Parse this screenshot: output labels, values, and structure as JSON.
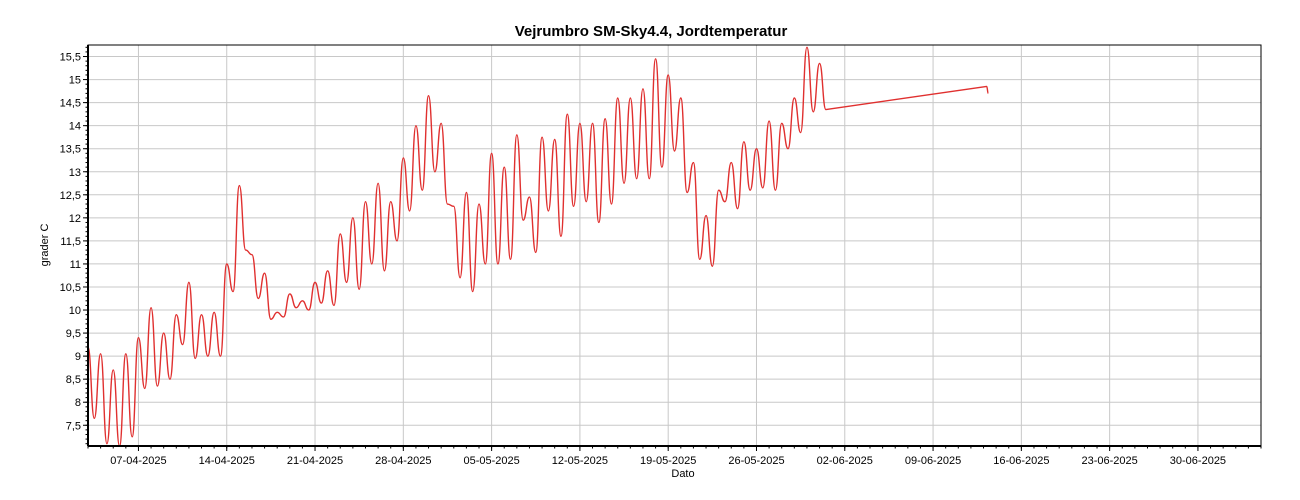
{
  "chart_data": {
    "type": "line",
    "title": "Vejrumbro SM-Sky4.4, Jordtemperatur",
    "xlabel": "Dato",
    "ylabel": "grader C",
    "x_range": [
      "2025-04-03",
      "2025-07-05"
    ],
    "ylim": [
      7.05,
      15.75
    ],
    "grid": true,
    "legend": "none",
    "x_ticks": [
      {
        "date": "2025-04-07",
        "label": "07-04-2025"
      },
      {
        "date": "2025-04-14",
        "label": "14-04-2025"
      },
      {
        "date": "2025-04-21",
        "label": "21-04-2025"
      },
      {
        "date": "2025-04-28",
        "label": "28-04-2025"
      },
      {
        "date": "2025-05-05",
        "label": "05-05-2025"
      },
      {
        "date": "2025-05-12",
        "label": "12-05-2025"
      },
      {
        "date": "2025-05-19",
        "label": "19-05-2025"
      },
      {
        "date": "2025-05-26",
        "label": "26-05-2025"
      },
      {
        "date": "2025-06-02",
        "label": "02-06-2025"
      },
      {
        "date": "2025-06-09",
        "label": "09-06-2025"
      },
      {
        "date": "2025-06-16",
        "label": "16-06-2025"
      },
      {
        "date": "2025-06-23",
        "label": "23-06-2025"
      },
      {
        "date": "2025-06-30",
        "label": "30-06-2025"
      }
    ],
    "y_ticks": [
      {
        "value": 7.5,
        "label": "7,5"
      },
      {
        "value": 8,
        "label": "8"
      },
      {
        "value": 8.5,
        "label": "8,5"
      },
      {
        "value": 9,
        "label": "9"
      },
      {
        "value": 9.5,
        "label": "9,5"
      },
      {
        "value": 10,
        "label": "10"
      },
      {
        "value": 10.5,
        "label": "10,5"
      },
      {
        "value": 11,
        "label": "11"
      },
      {
        "value": 11.5,
        "label": "11,5"
      },
      {
        "value": 12,
        "label": "12"
      },
      {
        "value": 12.5,
        "label": "12,5"
      },
      {
        "value": 13,
        "label": "13"
      },
      {
        "value": 13.5,
        "label": "13,5"
      },
      {
        "value": 14,
        "label": "14"
      },
      {
        "value": 14.5,
        "label": "14,5"
      },
      {
        "value": 15,
        "label": "15"
      },
      {
        "value": 15.5,
        "label": "15,5"
      }
    ],
    "series": [
      {
        "color": "#e0302f",
        "points": [
          [
            "2025-04-03T00:00",
            9.2
          ],
          [
            "2025-04-03T12:00",
            7.65
          ],
          [
            "2025-04-04T00:00",
            9.05
          ],
          [
            "2025-04-04T12:00",
            7.1
          ],
          [
            "2025-04-05T00:00",
            8.7
          ],
          [
            "2025-04-05T12:00",
            7.05
          ],
          [
            "2025-04-06T00:00",
            9.05
          ],
          [
            "2025-04-06T12:00",
            7.25
          ],
          [
            "2025-04-07T00:00",
            9.4
          ],
          [
            "2025-04-07T12:00",
            8.3
          ],
          [
            "2025-04-08T00:00",
            10.05
          ],
          [
            "2025-04-08T12:00",
            8.35
          ],
          [
            "2025-04-09T00:00",
            9.5
          ],
          [
            "2025-04-09T12:00",
            8.5
          ],
          [
            "2025-04-10T00:00",
            9.9
          ],
          [
            "2025-04-10T12:00",
            9.25
          ],
          [
            "2025-04-11T00:00",
            10.6
          ],
          [
            "2025-04-11T12:00",
            8.95
          ],
          [
            "2025-04-12T00:00",
            9.9
          ],
          [
            "2025-04-12T12:00",
            9.0
          ],
          [
            "2025-04-13T00:00",
            9.95
          ],
          [
            "2025-04-13T12:00",
            9.0
          ],
          [
            "2025-04-14T00:00",
            11.0
          ],
          [
            "2025-04-14T12:00",
            10.4
          ],
          [
            "2025-04-15T00:00",
            12.7
          ],
          [
            "2025-04-15T12:00",
            11.3
          ],
          [
            "2025-04-16T00:00",
            11.2
          ],
          [
            "2025-04-16T12:00",
            10.25
          ],
          [
            "2025-04-17T00:00",
            10.8
          ],
          [
            "2025-04-17T12:00",
            9.8
          ],
          [
            "2025-04-18T00:00",
            9.95
          ],
          [
            "2025-04-18T12:00",
            9.85
          ],
          [
            "2025-04-19T00:00",
            10.35
          ],
          [
            "2025-04-19T12:00",
            10.05
          ],
          [
            "2025-04-20T00:00",
            10.2
          ],
          [
            "2025-04-20T12:00",
            10.0
          ],
          [
            "2025-04-21T00:00",
            10.6
          ],
          [
            "2025-04-21T12:00",
            10.15
          ],
          [
            "2025-04-22T00:00",
            10.85
          ],
          [
            "2025-04-22T12:00",
            10.1
          ],
          [
            "2025-04-23T00:00",
            11.65
          ],
          [
            "2025-04-23T12:00",
            10.6
          ],
          [
            "2025-04-24T00:00",
            12.0
          ],
          [
            "2025-04-24T12:00",
            10.45
          ],
          [
            "2025-04-25T00:00",
            12.35
          ],
          [
            "2025-04-25T12:00",
            11.0
          ],
          [
            "2025-04-26T00:00",
            12.75
          ],
          [
            "2025-04-26T12:00",
            10.85
          ],
          [
            "2025-04-27T00:00",
            12.35
          ],
          [
            "2025-04-27T12:00",
            11.5
          ],
          [
            "2025-04-28T00:00",
            13.3
          ],
          [
            "2025-04-28T12:00",
            12.15
          ],
          [
            "2025-04-29T00:00",
            14.0
          ],
          [
            "2025-04-29T12:00",
            12.6
          ],
          [
            "2025-04-30T00:00",
            14.65
          ],
          [
            "2025-04-30T12:00",
            13.0
          ],
          [
            "2025-05-01T00:00",
            14.05
          ],
          [
            "2025-05-01T12:00",
            12.3
          ],
          [
            "2025-05-02T00:00",
            12.25
          ],
          [
            "2025-05-02T12:00",
            10.7
          ],
          [
            "2025-05-03T00:00",
            12.55
          ],
          [
            "2025-05-03T12:00",
            10.4
          ],
          [
            "2025-05-04T00:00",
            12.3
          ],
          [
            "2025-05-04T12:00",
            11.0
          ],
          [
            "2025-05-05T00:00",
            13.4
          ],
          [
            "2025-05-05T12:00",
            11.0
          ],
          [
            "2025-05-06T00:00",
            13.1
          ],
          [
            "2025-05-06T12:00",
            11.1
          ],
          [
            "2025-05-07T00:00",
            13.8
          ],
          [
            "2025-05-07T12:00",
            11.95
          ],
          [
            "2025-05-08T00:00",
            12.45
          ],
          [
            "2025-05-08T12:00",
            11.25
          ],
          [
            "2025-05-09T00:00",
            13.75
          ],
          [
            "2025-05-09T12:00",
            12.15
          ],
          [
            "2025-05-10T00:00",
            13.7
          ],
          [
            "2025-05-10T12:00",
            11.6
          ],
          [
            "2025-05-11T00:00",
            14.25
          ],
          [
            "2025-05-11T12:00",
            12.25
          ],
          [
            "2025-05-12T00:00",
            14.05
          ],
          [
            "2025-05-12T12:00",
            12.35
          ],
          [
            "2025-05-13T00:00",
            14.05
          ],
          [
            "2025-05-13T12:00",
            11.9
          ],
          [
            "2025-05-14T00:00",
            14.15
          ],
          [
            "2025-05-14T12:00",
            12.3
          ],
          [
            "2025-05-15T00:00",
            14.6
          ],
          [
            "2025-05-15T12:00",
            12.75
          ],
          [
            "2025-05-16T00:00",
            14.6
          ],
          [
            "2025-05-16T12:00",
            12.85
          ],
          [
            "2025-05-17T00:00",
            14.8
          ],
          [
            "2025-05-17T12:00",
            12.85
          ],
          [
            "2025-05-18T00:00",
            15.45
          ],
          [
            "2025-05-18T12:00",
            13.1
          ],
          [
            "2025-05-19T00:00",
            15.1
          ],
          [
            "2025-05-19T12:00",
            13.45
          ],
          [
            "2025-05-20T00:00",
            14.6
          ],
          [
            "2025-05-20T12:00",
            12.55
          ],
          [
            "2025-05-21T00:00",
            13.2
          ],
          [
            "2025-05-21T12:00",
            11.1
          ],
          [
            "2025-05-22T00:00",
            12.05
          ],
          [
            "2025-05-22T12:00",
            10.95
          ],
          [
            "2025-05-23T00:00",
            12.6
          ],
          [
            "2025-05-23T12:00",
            12.35
          ],
          [
            "2025-05-24T00:00",
            13.2
          ],
          [
            "2025-05-24T12:00",
            12.2
          ],
          [
            "2025-05-25T00:00",
            13.65
          ],
          [
            "2025-05-25T12:00",
            12.6
          ],
          [
            "2025-05-26T00:00",
            13.5
          ],
          [
            "2025-05-26T12:00",
            12.65
          ],
          [
            "2025-05-27T00:00",
            14.1
          ],
          [
            "2025-05-27T12:00",
            12.6
          ],
          [
            "2025-05-28T00:00",
            14.05
          ],
          [
            "2025-05-28T12:00",
            13.5
          ],
          [
            "2025-05-29T00:00",
            14.6
          ],
          [
            "2025-05-29T12:00",
            13.85
          ],
          [
            "2025-05-30T00:00",
            15.7
          ],
          [
            "2025-05-30T12:00",
            14.3
          ],
          [
            "2025-05-31T00:00",
            15.35
          ],
          [
            "2025-05-31T12:00",
            14.35
          ],
          [
            "2025-06-13T06:00",
            14.85
          ],
          [
            "2025-06-13T09:00",
            14.7
          ]
        ]
      }
    ]
  }
}
